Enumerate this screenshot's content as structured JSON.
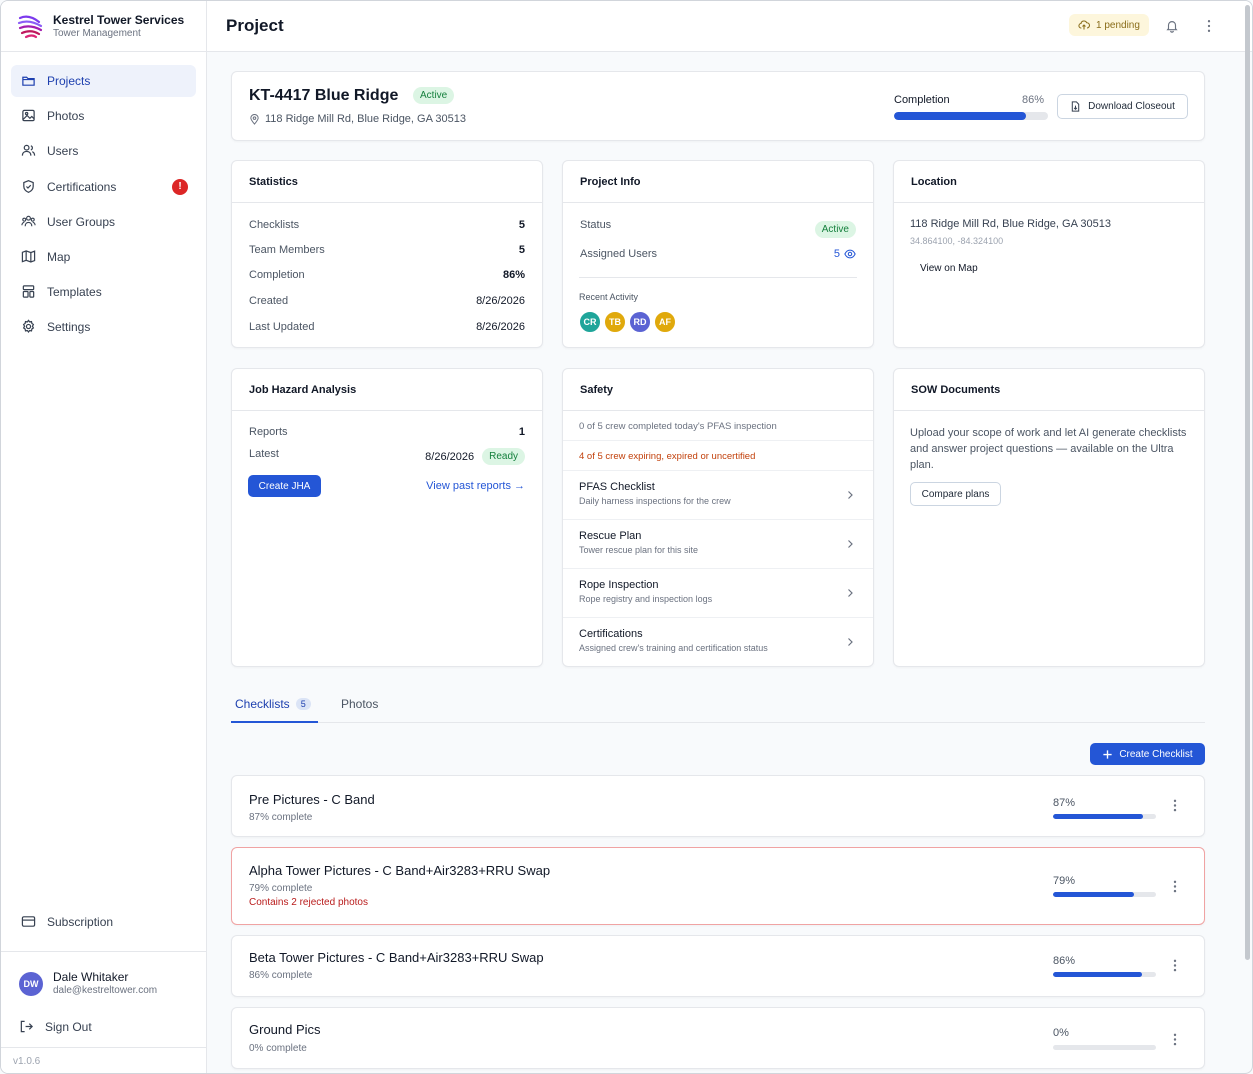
{
  "brand": {
    "name": "Kestrel Tower Services",
    "subtitle": "Tower Management"
  },
  "nav": [
    {
      "label": "Projects",
      "icon": "folder-icon",
      "active": true
    },
    {
      "label": "Photos",
      "icon": "image-icon"
    },
    {
      "label": "Users",
      "icon": "users-icon"
    },
    {
      "label": "Certifications",
      "icon": "shield-check-icon",
      "badge": "!"
    },
    {
      "label": "User Groups",
      "icon": "user-groups-icon"
    },
    {
      "label": "Map",
      "icon": "map-icon"
    },
    {
      "label": "Templates",
      "icon": "template-icon"
    },
    {
      "label": "Settings",
      "icon": "gear-icon"
    }
  ],
  "subscription_label": "Subscription",
  "user": {
    "initials": "DW",
    "name": "Dale Whitaker",
    "email": "dale@kestreltower.com"
  },
  "signout_label": "Sign Out",
  "version": "v1.0.6",
  "topbar": {
    "title": "Project",
    "pending": "1 pending"
  },
  "project": {
    "title": "KT-4417 Blue Ridge",
    "status": "Active",
    "address": "118 Ridge Mill Rd, Blue Ridge, GA 30513",
    "completion_label": "Completion",
    "completion_value": "86%",
    "completion_fraction": 0.86,
    "download_label": "Download Closeout"
  },
  "statistics": {
    "title": "Statistics",
    "rows": [
      {
        "k": "Checklists",
        "v": "5",
        "bold": true
      },
      {
        "k": "Team Members",
        "v": "5",
        "bold": true
      },
      {
        "k": "Completion",
        "v": "86%",
        "bold": true
      },
      {
        "k": "Created",
        "v": "8/26/2026"
      },
      {
        "k": "Last Updated",
        "v": "8/26/2026"
      }
    ]
  },
  "project_info": {
    "title": "Project Info",
    "status_label": "Status",
    "status_value": "Active",
    "assigned_label": "Assigned Users",
    "assigned_value": "5",
    "recent_label": "Recent Activity",
    "avatars": [
      {
        "initials": "CR",
        "color": "#1fa59a"
      },
      {
        "initials": "TB",
        "color": "#e0a90c"
      },
      {
        "initials": "RD",
        "color": "#5b63d3"
      },
      {
        "initials": "AF",
        "color": "#e0a90c"
      }
    ]
  },
  "location": {
    "title": "Location",
    "address": "118 Ridge Mill Rd, Blue Ridge, GA 30513",
    "coords": "34.864100, -84.324100",
    "map_link": "View on Map"
  },
  "jha": {
    "title": "Job Hazard Analysis",
    "reports_label": "Reports",
    "reports_value": "1",
    "latest_label": "Latest",
    "latest_value": "8/26/2026",
    "latest_status": "Ready",
    "create_label": "Create JHA",
    "past_label": "View past reports →"
  },
  "safety": {
    "title": "Safety",
    "notice1": "0 of 5 crew completed today's PFAS inspection",
    "notice2": "4 of 5 crew expiring, expired or uncertified",
    "items": [
      {
        "title": "PFAS Checklist",
        "sub": "Daily harness inspections for the crew"
      },
      {
        "title": "Rescue Plan",
        "sub": "Tower rescue plan for this site"
      },
      {
        "title": "Rope Inspection",
        "sub": "Rope registry and inspection logs"
      },
      {
        "title": "Certifications",
        "sub": "Assigned crew's training and certification status"
      }
    ]
  },
  "sow": {
    "title": "SOW Documents",
    "text": "Upload your scope of work and let AI generate checklists and answer project questions — available on the Ultra plan.",
    "button": "Compare plans"
  },
  "tabs": {
    "checklists_label": "Checklists",
    "checklists_count": "5",
    "photos_label": "Photos"
  },
  "create_checklist_label": "Create Checklist",
  "checklists": [
    {
      "title": "Pre Pictures - C Band",
      "sub": "87% complete",
      "pct": "87%",
      "fraction": 0.87
    },
    {
      "title": "Alpha Tower Pictures - C Band+Air3283+RRU Swap",
      "sub": "79% complete",
      "warning": "Contains 2 rejected photos",
      "pct": "79%",
      "fraction": 0.79
    },
    {
      "title": "Beta Tower Pictures - C Band+Air3283+RRU Swap",
      "sub": "86% complete",
      "pct": "86%",
      "fraction": 0.86
    },
    {
      "title": "Ground Pics",
      "sub": "0% complete",
      "pct": "0%",
      "fraction": 0
    }
  ]
}
